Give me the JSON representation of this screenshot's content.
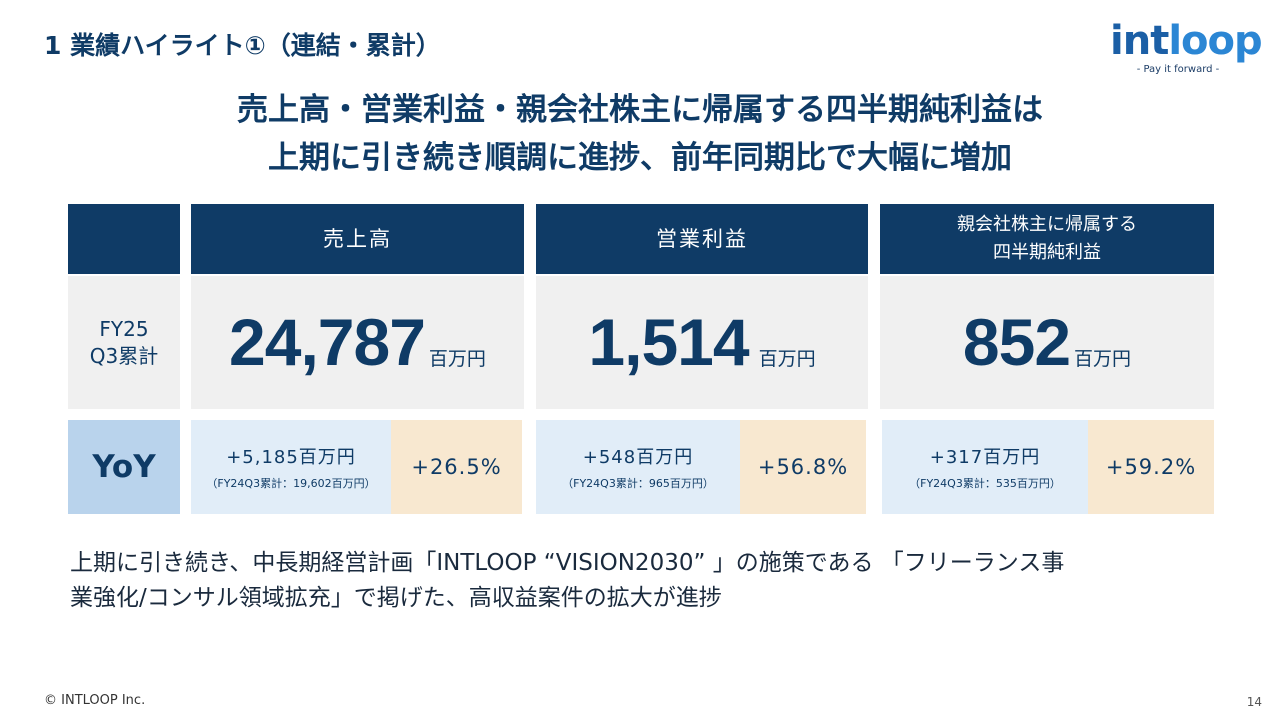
{
  "section_title": "1  業績ハイライト①（連結・累計）",
  "logo": {
    "word_part1": "int",
    "word_part2": "loop",
    "tagline": "- Pay it forward -"
  },
  "headline": {
    "line1": "売上高・営業利益・親会社株主に帰属する四半期純利益は",
    "line2": "上期に引き続き順調に進捗、前年同期比で大幅に増加"
  },
  "table": {
    "row_label": {
      "line1": "FY25",
      "line2": "Q3累計"
    },
    "yoy_label": "YoY",
    "unit": "百万円",
    "columns": [
      {
        "header": "売上高",
        "value": "24,787",
        "yoy_amount": "+5,185百万円",
        "yoy_prev": "（FY24Q3累計：19,602百万円）",
        "yoy_pct": "+26.5%"
      },
      {
        "header": "営業利益",
        "value": "1,514",
        "yoy_amount": "+548百万円",
        "yoy_prev": "（FY24Q3累計：965百万円）",
        "yoy_pct": "+56.8%"
      },
      {
        "header_line1": "親会社株主に帰属する",
        "header_line2": "四半期純利益",
        "value": "852",
        "yoy_amount": "+317百万円",
        "yoy_prev": "（FY24Q3累計：535百万円）",
        "yoy_pct": "+59.2%"
      }
    ]
  },
  "body": {
    "line1": "上期に引き続き、中長期経営計画「INTLOOP “VISION2030” 」の施策である 「フリーランス事",
    "line2": "業強化/コンサル領域拡充」で掲げた、高収益案件の拡大が進捗"
  },
  "footer": {
    "copyright": "© INTLOOP  Inc.",
    "page_number": "14"
  },
  "colors": {
    "navy": "#0f3b66",
    "light_blue": "#e1edf8",
    "peach": "#f8e8d0",
    "gray": "#f0f0f0",
    "yoy_blue": "#b9d3ec"
  }
}
